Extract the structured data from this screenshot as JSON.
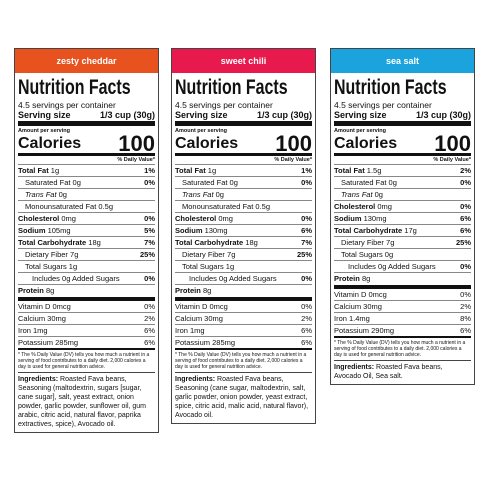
{
  "panels": [
    {
      "flavor": "zesty cheddar",
      "color": "#e8521f",
      "title": "Nutrition Facts",
      "servings": "4.5 servings per container",
      "serving_size_label": "Serving size",
      "serving_size": "1/3 cup (30g)",
      "amount_per_serving": "Amount per serving",
      "calories_label": "Calories",
      "calories": "100",
      "dv_header": "% Daily Value*",
      "nutrients": [
        {
          "label": "Total Fat",
          "amount": "1g",
          "dv": "1%",
          "bold": true,
          "indent": 0
        },
        {
          "label": "Saturated Fat",
          "amount": "0g",
          "dv": "0%",
          "bold": false,
          "indent": 1
        },
        {
          "label": "Trans Fat",
          "amount": "0g",
          "bold": false,
          "indent": 1,
          "italic": true
        },
        {
          "label": "Monounsaturated Fat",
          "amount": "0.5g",
          "bold": false,
          "indent": 1
        },
        {
          "label": "Cholesterol",
          "amount": "0mg",
          "dv": "0%",
          "bold": true,
          "indent": 0
        },
        {
          "label": "Sodium",
          "amount": "105mg",
          "dv": "5%",
          "bold": true,
          "indent": 0
        },
        {
          "label": "Total Carbohydrate",
          "amount": "18g",
          "dv": "7%",
          "bold": true,
          "indent": 0
        },
        {
          "label": "Dietary Fiber",
          "amount": "7g",
          "dv": "25%",
          "bold": false,
          "indent": 1
        },
        {
          "label": "Total Sugars",
          "amount": "1g",
          "bold": false,
          "indent": 1
        },
        {
          "label": "Includes 0g Added Sugars",
          "dv": "0%",
          "bold": false,
          "indent": 2
        },
        {
          "label": "Protein",
          "amount": "8g",
          "bold": true,
          "indent": 0
        }
      ],
      "vitamins": [
        {
          "label": "Vitamin D 0mcg",
          "dv": "0%"
        },
        {
          "label": "Calcium 30mg",
          "dv": "2%"
        },
        {
          "label": "Iron 1mg",
          "dv": "6%"
        },
        {
          "label": "Potassium 285mg",
          "dv": "6%"
        }
      ],
      "footnote": "* The % Daily Value (DV) tells you how much a nutrient in a serving of food contributes to a daily diet. 2,000 calories a day is used for general nutrition advice.",
      "ingredients_label": "Ingredients:",
      "ingredients": "Roasted Fava beans, Seasoning (maltodextrin, sugars [sugar, cane sugar], salt, yeast extract, onion powder, garlic powder, sunflower oil, gum arabic, citric acid, natural flavor, paprika extractives, spice), Avocado oil."
    },
    {
      "flavor": "sweet chili",
      "color": "#e8194c",
      "title": "Nutrition Facts",
      "servings": "4.5 servings per container",
      "serving_size_label": "Serving size",
      "serving_size": "1/3 cup (30g)",
      "amount_per_serving": "Amount per serving",
      "calories_label": "Calories",
      "calories": "100",
      "dv_header": "% Daily Value*",
      "nutrients": [
        {
          "label": "Total Fat",
          "amount": "1g",
          "dv": "1%",
          "bold": true,
          "indent": 0
        },
        {
          "label": "Saturated Fat",
          "amount": "0g",
          "dv": "0%",
          "bold": false,
          "indent": 1
        },
        {
          "label": "Trans Fat",
          "amount": "0g",
          "bold": false,
          "indent": 1,
          "italic": true
        },
        {
          "label": "Monounsaturated Fat",
          "amount": "0.5g",
          "bold": false,
          "indent": 1
        },
        {
          "label": "Cholesterol",
          "amount": "0mg",
          "dv": "0%",
          "bold": true,
          "indent": 0
        },
        {
          "label": "Sodium",
          "amount": "130mg",
          "dv": "6%",
          "bold": true,
          "indent": 0
        },
        {
          "label": "Total Carbohydrate",
          "amount": "18g",
          "dv": "7%",
          "bold": true,
          "indent": 0
        },
        {
          "label": "Dietary Fiber",
          "amount": "7g",
          "dv": "25%",
          "bold": false,
          "indent": 1
        },
        {
          "label": "Total Sugars",
          "amount": "1g",
          "bold": false,
          "indent": 1
        },
        {
          "label": "Includes 0g Added Sugars",
          "dv": "0%",
          "bold": false,
          "indent": 2
        },
        {
          "label": "Protein",
          "amount": "8g",
          "bold": true,
          "indent": 0
        }
      ],
      "vitamins": [
        {
          "label": "Vitamin D 0mcg",
          "dv": "0%"
        },
        {
          "label": "Calcium 30mg",
          "dv": "2%"
        },
        {
          "label": "Iron 1mg",
          "dv": "6%"
        },
        {
          "label": "Potassium 285mg",
          "dv": "6%"
        }
      ],
      "footnote": "* The % Daily Value (DV) tells you how much a nutrient in a serving of food contributes to a daily diet. 2,000 calories a day is used for general nutrition advice.",
      "ingredients_label": "Ingredients:",
      "ingredients": "Roasted Fava beans, Seasoning (cane sugar, maltodextrin, salt, garlic powder, onion powder, yeast extract, spice, citric acid, malic acid, natural flavor), Avocado oil."
    },
    {
      "flavor": "sea salt",
      "color": "#1ba3dd",
      "title": "Nutrition Facts",
      "servings": "4.5 servings per container",
      "serving_size_label": "Serving size",
      "serving_size": "1/3 cup (30g)",
      "amount_per_serving": "Amount per serving",
      "calories_label": "Calories",
      "calories": "100",
      "dv_header": "% Daily Value*",
      "nutrients": [
        {
          "label": "Total Fat",
          "amount": "1.5g",
          "dv": "2%",
          "bold": true,
          "indent": 0
        },
        {
          "label": "Saturated Fat",
          "amount": "0g",
          "dv": "0%",
          "bold": false,
          "indent": 1
        },
        {
          "label": "Trans Fat",
          "amount": "0g",
          "bold": false,
          "indent": 1,
          "italic": true
        },
        {
          "label": "Cholesterol",
          "amount": "0mg",
          "dv": "0%",
          "bold": true,
          "indent": 0
        },
        {
          "label": "Sodium",
          "amount": "130mg",
          "dv": "6%",
          "bold": true,
          "indent": 0
        },
        {
          "label": "Total Carbohydrate",
          "amount": "17g",
          "dv": "6%",
          "bold": true,
          "indent": 0
        },
        {
          "label": "Dietary Fiber",
          "amount": "7g",
          "dv": "25%",
          "bold": false,
          "indent": 1
        },
        {
          "label": "Total Sugars",
          "amount": "0g",
          "bold": false,
          "indent": 1
        },
        {
          "label": "Includes 0g Added Sugars",
          "dv": "0%",
          "bold": false,
          "indent": 2
        },
        {
          "label": "Protein",
          "amount": "8g",
          "bold": true,
          "indent": 0
        }
      ],
      "vitamins": [
        {
          "label": "Vitamin D 0mcg",
          "dv": "0%"
        },
        {
          "label": "Calcium 30mg",
          "dv": "2%"
        },
        {
          "label": "Iron 1.4mg",
          "dv": "8%"
        },
        {
          "label": "Potassium 290mg",
          "dv": "6%"
        }
      ],
      "footnote": "* The % Daily Value (DV) tells you how much a nutrient in a serving of food contributes to a daily diet. 2,000 calories a day is used for general nutrition advice.",
      "ingredients_label": "Ingredients:",
      "ingredients": "Roasted Fava beans, Avocado Oil, Sea salt."
    }
  ]
}
